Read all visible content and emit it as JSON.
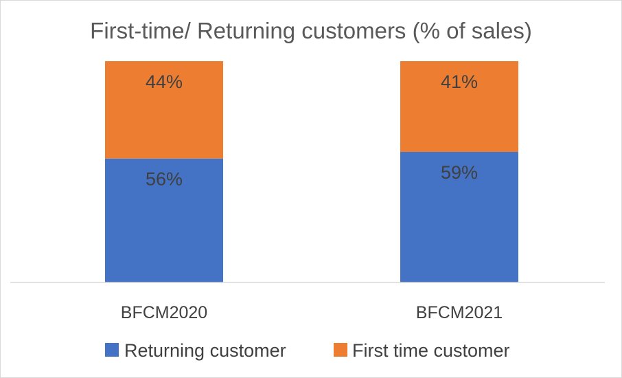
{
  "chart_data": {
    "type": "bar",
    "stacked": true,
    "title": "First-time/ Returning customers (% of sales)",
    "xlabel": "",
    "ylabel": "",
    "categories": [
      "BFCM2020",
      "BFCM2021"
    ],
    "ylim": [
      0,
      100
    ],
    "grid": false,
    "legend_position": "bottom",
    "series": [
      {
        "name": "Returning customer",
        "values": [
          56,
          59
        ],
        "labels": [
          "56%",
          "59%"
        ],
        "color": "#4472C4"
      },
      {
        "name": "First time customer",
        "values": [
          44,
          41
        ],
        "labels": [
          "44%",
          "41%"
        ],
        "color": "#ED7D31"
      }
    ]
  }
}
